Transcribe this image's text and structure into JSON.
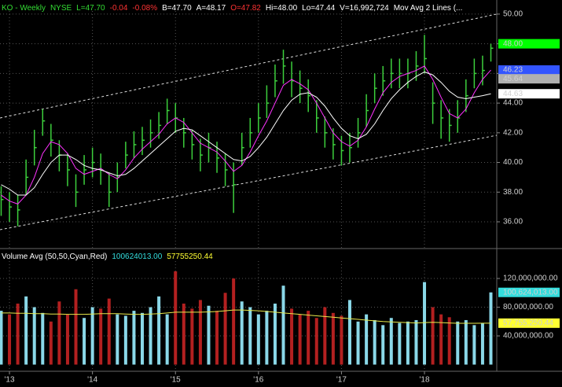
{
  "chart_data": [
    {
      "type": "ohlc",
      "header": [
        {
          "text": "KO - Weekly",
          "color": "#33dd33"
        },
        {
          "text": "NYSE",
          "color": "#33dd33"
        },
        {
          "text": "L=47.70",
          "color": "#33dd33"
        },
        {
          "text": "-0.04",
          "color": "#ff3333"
        },
        {
          "text": "-0.08%",
          "color": "#ff3333"
        },
        {
          "text": "B=47.70",
          "color": "#ffffff"
        },
        {
          "text": "A=48.17",
          "color": "#ffffff"
        },
        {
          "text": "O=47.82",
          "color": "#ff3333"
        },
        {
          "text": "Hi=48.00",
          "color": "#ffffff"
        },
        {
          "text": "Lo=47.44",
          "color": "#ffffff"
        },
        {
          "text": "V=16,992,724",
          "color": "#ffffff"
        },
        {
          "text": "Mov Avg 2 Lines (...",
          "color": "#ffffff"
        }
      ],
      "xlim": [
        2012.886,
        2018.871
      ],
      "ylim": [
        34.25,
        50.95
      ],
      "yticks": [
        {
          "value": 36,
          "label": "36.00"
        },
        {
          "value": 38,
          "label": "38.00"
        },
        {
          "value": 40,
          "label": "40.00"
        },
        {
          "value": 42,
          "label": "42.00"
        },
        {
          "value": 44,
          "label": "44.00"
        },
        {
          "value": 46,
          "label": "46.00"
        },
        {
          "value": 48,
          "label": "48.00"
        },
        {
          "value": 50,
          "label": "50.00"
        }
      ],
      "grid": true,
      "color": "#3ccf3c",
      "x": [
        2012.9,
        2013.0,
        2013.1,
        2013.2,
        2013.3,
        2013.4,
        2013.5,
        2013.6,
        2013.7,
        2013.8,
        2013.9,
        2014.0,
        2014.1,
        2014.2,
        2014.3,
        2014.4,
        2014.5,
        2014.6,
        2014.7,
        2014.8,
        2014.9,
        2015.0,
        2015.1,
        2015.2,
        2015.3,
        2015.4,
        2015.5,
        2015.6,
        2015.7,
        2015.8,
        2015.9,
        2016.0,
        2016.1,
        2016.2,
        2016.3,
        2016.4,
        2016.5,
        2016.6,
        2016.7,
        2016.8,
        2016.9,
        2017.0,
        2017.1,
        2017.2,
        2017.3,
        2017.4,
        2017.5,
        2017.6,
        2017.7,
        2017.8,
        2017.9,
        2018.0,
        2018.1,
        2018.2,
        2018.3,
        2018.4,
        2018.5,
        2018.6,
        2018.7,
        2018.8
      ],
      "high": [
        38.4,
        38,
        37.8,
        40.2,
        42.2,
        43.6,
        42.6,
        41.5,
        40.6,
        39.2,
        40.5,
        41,
        40.6,
        39.3,
        40,
        41.4,
        42.1,
        42.4,
        42.9,
        43.4,
        44.3,
        44,
        43,
        42.2,
        41.6,
        42,
        41.4,
        40.6,
        40,
        42,
        43,
        44,
        45.2,
        46.6,
        47.6,
        46.8,
        46.2,
        45.6,
        44.2,
        43.1,
        42.3,
        41.8,
        42,
        43,
        44.6,
        46,
        46.5,
        47,
        47,
        47,
        47.5,
        48.6,
        45.4,
        44.2,
        43.6,
        44.2,
        45.6,
        47,
        47.2,
        48
      ],
      "low": [
        36.4,
        36,
        35.7,
        37.8,
        39.8,
        41.8,
        40.4,
        39.4,
        38.4,
        37,
        38.5,
        39,
        38.5,
        37,
        38,
        39.6,
        40.3,
        40.5,
        41,
        41.6,
        42.6,
        42,
        41,
        40.2,
        39.4,
        40,
        39.3,
        38.4,
        36.6,
        39.8,
        41,
        42,
        43,
        44.4,
        45.3,
        44.4,
        44,
        43.4,
        42,
        41,
        40.2,
        39.8,
        40,
        41,
        42.4,
        44,
        44.5,
        45,
        45,
        45,
        45.5,
        46,
        42.6,
        41.6,
        41.4,
        42,
        43.4,
        45,
        45.2,
        46.8
      ],
      "close": [
        37.5,
        37,
        36.8,
        39,
        41,
        42.8,
        41.5,
        40.5,
        39.5,
        38,
        39.5,
        40,
        39.5,
        38,
        39,
        40.5,
        41.2,
        41.5,
        42,
        42.5,
        43.5,
        43,
        42,
        41.2,
        40.5,
        41,
        40.3,
        39.5,
        38.5,
        41,
        42,
        43,
        44,
        45.5,
        46.5,
        45.5,
        45,
        44.5,
        43,
        42,
        41.2,
        40.8,
        41,
        42,
        43.5,
        45,
        45.5,
        46,
        46,
        46,
        46.5,
        47,
        44,
        43,
        42.5,
        43,
        44.5,
        46,
        46.2,
        47.7
      ],
      "ma": [
        {
          "color": "#ff33ff",
          "values": [
            37.8,
            37.4,
            37.2,
            37.8,
            39,
            40.6,
            41.4,
            41.2,
            40.6,
            39.6,
            39.2,
            39.4,
            39.6,
            39.2,
            38.9,
            39.5,
            40.3,
            40.9,
            41.4,
            41.9,
            42.6,
            43,
            42.7,
            42,
            41.3,
            41,
            40.7,
            40.1,
            39.4,
            39.8,
            40.7,
            41.8,
            42.8,
            44,
            45.2,
            45.6,
            45.3,
            44.9,
            44,
            43,
            42,
            41.4,
            41.1,
            41.5,
            42.4,
            43.6,
            44.7,
            45.4,
            45.8,
            46,
            46.2,
            46.5,
            45.6,
            44.4,
            43.3,
            43,
            43.6,
            44.7,
            45.6,
            46.23
          ]
        },
        {
          "color": "#ffffff",
          "values": [
            38.5,
            38.2,
            37.8,
            37.8,
            38.3,
            39.2,
            40,
            40.5,
            40.5,
            40.2,
            39.8,
            39.6,
            39.5,
            39.3,
            39.1,
            39.2,
            39.6,
            40.1,
            40.6,
            41.1,
            41.6,
            42.1,
            42.3,
            42.2,
            41.8,
            41.4,
            41,
            40.6,
            40.2,
            40.1,
            40.4,
            41,
            41.7,
            42.6,
            43.5,
            44.2,
            44.6,
            44.7,
            44.4,
            43.8,
            43,
            42.3,
            41.8,
            41.6,
            41.9,
            42.6,
            43.5,
            44.3,
            44.9,
            45.4,
            45.8,
            46.1,
            45.9,
            45.4,
            44.8,
            44.4,
            44.3,
            44.4,
            44.5,
            44.63
          ]
        }
      ],
      "channel": [
        {
          "x": [
            2012.886,
            2018.871
          ],
          "values": [
            43.0,
            50.0
          ]
        },
        {
          "x": [
            2012.886,
            2018.871
          ],
          "values": [
            35.47,
            41.83
          ]
        }
      ],
      "flags": [
        {
          "value": 48.0,
          "label": "48.00",
          "color": "#00ff00",
          "text_color": "#000000"
        },
        {
          "value": 46.23,
          "label": "46.23",
          "color": "#3355ff",
          "text_color": "#000000"
        },
        {
          "value": 45.64,
          "label": "45.64",
          "color": "#b0b0b0",
          "text_color": "#000000"
        },
        {
          "value": 44.63,
          "label": "44.63",
          "color": "#ffffff",
          "text_color": "#000000"
        }
      ]
    },
    {
      "type": "bar",
      "header": [
        {
          "text": "Volume Avg (50,50,Cyan,Red)",
          "color": "#ffffff"
        },
        {
          "text": "100624013.00",
          "color": "#33dddd"
        },
        {
          "text": "57755250.44",
          "color": "#ffff33"
        }
      ],
      "xlim": [
        2012.886,
        2018.871
      ],
      "xticks": [
        {
          "value": 2013,
          "label": "'13"
        },
        {
          "value": 2014,
          "label": "'14"
        },
        {
          "value": 2015,
          "label": "'15"
        },
        {
          "value": 2016,
          "label": "'16"
        },
        {
          "value": 2017,
          "label": "'17"
        },
        {
          "value": 2018,
          "label": "'18"
        }
      ],
      "ylim": [
        -9300000,
        159500000
      ],
      "yticks": [
        {
          "value": 40000000,
          "label": "40,000,000.00"
        },
        {
          "value": 80000000,
          "label": "80,000,000.00"
        },
        {
          "value": 120000000,
          "label": "120,000,000.00"
        }
      ],
      "grid": true,
      "up_color": "#8ad8e8",
      "down_color": "#b32020",
      "x": [
        2012.9,
        2013.0,
        2013.1,
        2013.2,
        2013.3,
        2013.4,
        2013.5,
        2013.6,
        2013.7,
        2013.8,
        2013.9,
        2014.0,
        2014.1,
        2014.2,
        2014.3,
        2014.4,
        2014.5,
        2014.6,
        2014.7,
        2014.8,
        2014.9,
        2015.0,
        2015.1,
        2015.2,
        2015.3,
        2015.4,
        2015.5,
        2015.6,
        2015.7,
        2015.8,
        2015.9,
        2016.0,
        2016.1,
        2016.2,
        2016.3,
        2016.4,
        2016.5,
        2016.6,
        2016.7,
        2016.8,
        2016.9,
        2017.0,
        2017.1,
        2017.2,
        2017.3,
        2017.4,
        2017.5,
        2017.6,
        2017.7,
        2017.8,
        2017.9,
        2018.0,
        2018.1,
        2018.2,
        2018.3,
        2018.4,
        2018.5,
        2018.6,
        2018.7,
        2018.8
      ],
      "values": [
        75000000,
        70000000,
        85000000,
        95000000,
        80000000,
        72000000,
        60000000,
        88000000,
        70000000,
        105000000,
        65000000,
        80000000,
        78000000,
        92000000,
        70000000,
        68000000,
        75000000,
        72000000,
        80000000,
        95000000,
        70000000,
        130000000,
        85000000,
        78000000,
        90000000,
        82000000,
        75000000,
        100000000,
        120000000,
        88000000,
        80000000,
        70000000,
        75000000,
        85000000,
        110000000,
        78000000,
        70000000,
        75000000,
        65000000,
        80000000,
        72000000,
        68000000,
        90000000,
        60000000,
        70000000,
        62000000,
        55000000,
        65000000,
        58000000,
        60000000,
        62000000,
        115000000,
        80000000,
        70000000,
        66000000,
        60000000,
        62000000,
        55000000,
        58000000,
        100624013
      ],
      "avg": {
        "color": "#e8e84a",
        "values": [
          72000000,
          72000000,
          71500000,
          71500000,
          71000000,
          71000000,
          70500000,
          70500000,
          70000000,
          70000000,
          70000000,
          70500000,
          71000000,
          71000000,
          71000000,
          70500000,
          70000000,
          70000000,
          70500000,
          71000000,
          72000000,
          73000000,
          73000000,
          73000000,
          73000000,
          73500000,
          74000000,
          75000000,
          76000000,
          76000000,
          75500000,
          75000000,
          74000000,
          73000000,
          72000000,
          71000000,
          70000000,
          69000000,
          68000000,
          67000000,
          66000000,
          65000000,
          64000000,
          63000000,
          62000000,
          61000000,
          60000000,
          59500000,
          59000000,
          58500000,
          58000000,
          58500000,
          59000000,
          58500000,
          58000000,
          57500000,
          57500000,
          57600000,
          57700000,
          57755250.44
        ]
      },
      "flags": [
        {
          "value": 100624013,
          "label": "100,624,013.00",
          "color": "#33dddd",
          "text_color": "#000000"
        },
        {
          "value": 57755250.44,
          "label": "57,755,250.44",
          "color": "#ffff33",
          "text_color": "#000000"
        }
      ]
    }
  ]
}
